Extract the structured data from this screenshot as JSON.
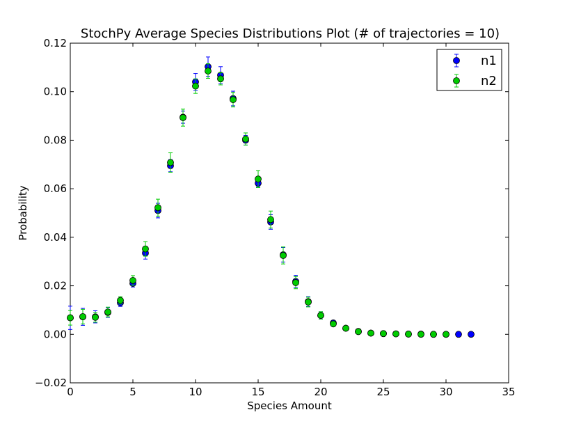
{
  "chart_data": {
    "type": "scatter",
    "title": "StochPy Average Species Distributions Plot (# of trajectories = 10)",
    "xlabel": "Species Amount",
    "ylabel": "Probability",
    "xlim": [
      0,
      35
    ],
    "ylim": [
      -0.02,
      0.12
    ],
    "x_ticks": [
      0,
      5,
      10,
      15,
      20,
      25,
      30,
      35
    ],
    "x_tick_labels": [
      "0",
      "5",
      "10",
      "15",
      "20",
      "25",
      "30",
      "35"
    ],
    "y_ticks": [
      -0.02,
      0.0,
      0.02,
      0.04,
      0.06,
      0.08,
      0.1,
      0.12
    ],
    "y_tick_labels": [
      "−0.02",
      "0.00",
      "0.02",
      "0.04",
      "0.06",
      "0.08",
      "0.10",
      "0.12"
    ],
    "grid": false,
    "legend": "top-right",
    "series": [
      {
        "name": "n1",
        "color": "#0000ff",
        "x": [
          0,
          1,
          2,
          3,
          4,
          5,
          6,
          7,
          8,
          9,
          10,
          11,
          12,
          13,
          14,
          15,
          16,
          17,
          18,
          19,
          20,
          21,
          22,
          23,
          24,
          25,
          26,
          27,
          28,
          29,
          30,
          31,
          32
        ],
        "y": [
          0.0068,
          0.0072,
          0.0072,
          0.009,
          0.013,
          0.021,
          0.0335,
          0.051,
          0.0695,
          0.0895,
          0.104,
          0.1103,
          0.1068,
          0.0972,
          0.08,
          0.0623,
          0.0463,
          0.0328,
          0.0218,
          0.0135,
          0.0078,
          0.0047,
          0.0025,
          0.0012,
          0.0005,
          0.0003,
          0.0002,
          0.0001,
          0.0001,
          0.0,
          0.0,
          0.0,
          0.0
        ],
        "err": [
          0.0048,
          0.0035,
          0.0025,
          0.002,
          0.0015,
          0.0015,
          0.0025,
          0.003,
          0.0025,
          0.0025,
          0.0035,
          0.004,
          0.0035,
          0.003,
          0.002,
          0.0015,
          0.003,
          0.003,
          0.0025,
          0.002,
          0.0015,
          0.001,
          0.0005,
          0.0005,
          0.0003,
          0.0002,
          0.0002,
          0.0003,
          0.0,
          0.0,
          0.0,
          0.0,
          0.0
        ]
      },
      {
        "name": "n2",
        "color": "#00cc00",
        "x": [
          0,
          1,
          2,
          3,
          4,
          5,
          6,
          7,
          8,
          9,
          10,
          11,
          12,
          13,
          14,
          15,
          16,
          17,
          18,
          19,
          20,
          21,
          22,
          23,
          24,
          25,
          26,
          27,
          28,
          29,
          30
        ],
        "y": [
          0.0068,
          0.0073,
          0.007,
          0.0092,
          0.014,
          0.0222,
          0.0352,
          0.0522,
          0.0708,
          0.0893,
          0.1023,
          0.1085,
          0.1053,
          0.0967,
          0.0805,
          0.064,
          0.0473,
          0.0325,
          0.0213,
          0.0133,
          0.0078,
          0.0043,
          0.0025,
          0.0011,
          0.0005,
          0.0003,
          0.0002,
          0.0001,
          0.0,
          0.0,
          0.0
        ],
        "err": [
          0.003,
          0.003,
          0.002,
          0.002,
          0.0015,
          0.002,
          0.003,
          0.0035,
          0.004,
          0.0035,
          0.003,
          0.003,
          0.0025,
          0.003,
          0.0025,
          0.0035,
          0.0035,
          0.0035,
          0.0025,
          0.002,
          0.0015,
          0.0008,
          0.0005,
          0.0004,
          0.0003,
          0.0002,
          0.0002,
          0.0002,
          0.0,
          0.0,
          0.0
        ]
      }
    ]
  }
}
